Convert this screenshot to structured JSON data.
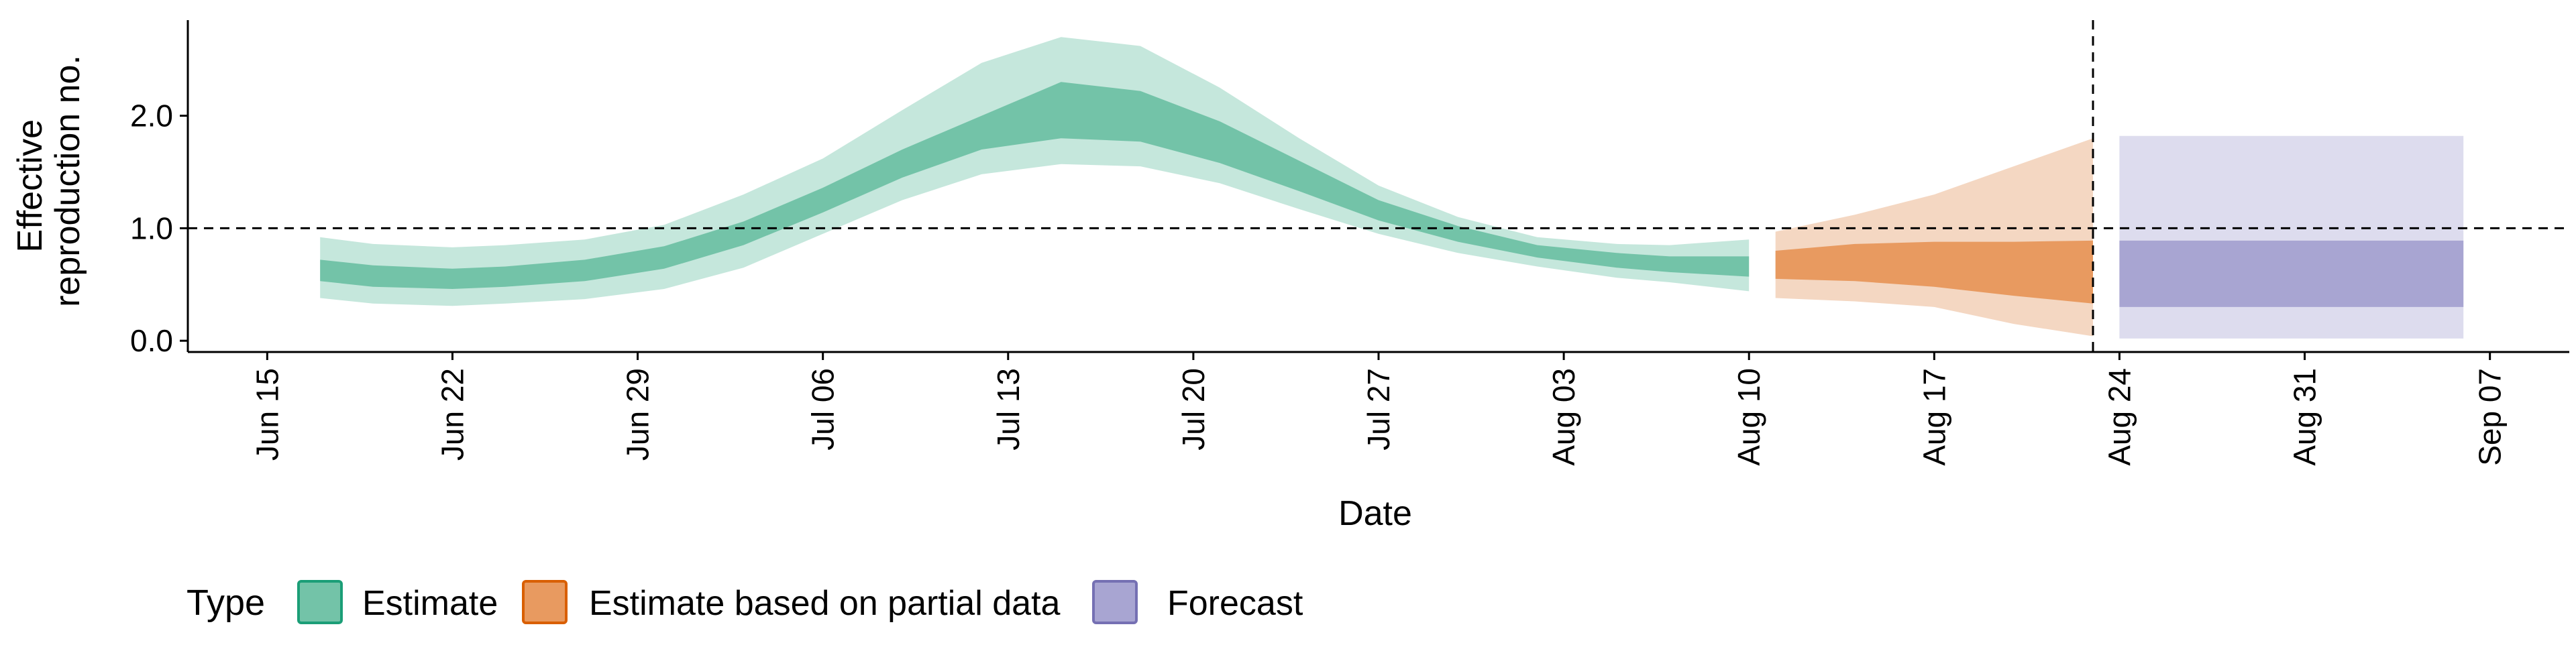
{
  "chart_data": {
    "type": "area",
    "xlabel": "Date",
    "ylabel": [
      "Effective",
      "reproduction no."
    ],
    "yticks": [
      "0.0",
      "1.0",
      "2.0"
    ],
    "ylim": [
      -0.1,
      2.85
    ],
    "xlim": [
      "2020-06-12",
      "2020-09-10"
    ],
    "xticks": [
      {
        "date": "2020-06-15",
        "label": "Jun 15"
      },
      {
        "date": "2020-06-22",
        "label": "Jun 22"
      },
      {
        "date": "2020-06-29",
        "label": "Jun 29"
      },
      {
        "date": "2020-07-06",
        "label": "Jul 06"
      },
      {
        "date": "2020-07-13",
        "label": "Jul 13"
      },
      {
        "date": "2020-07-20",
        "label": "Jul 20"
      },
      {
        "date": "2020-07-27",
        "label": "Jul 27"
      },
      {
        "date": "2020-08-03",
        "label": "Aug 03"
      },
      {
        "date": "2020-08-10",
        "label": "Aug 10"
      },
      {
        "date": "2020-08-17",
        "label": "Aug 17"
      },
      {
        "date": "2020-08-24",
        "label": "Aug 24"
      },
      {
        "date": "2020-08-31",
        "label": "Aug 31"
      },
      {
        "date": "2020-09-07",
        "label": "Sep 07"
      }
    ],
    "reference_line_y": 1.0,
    "vertical_line_date": "2020-08-23",
    "grid": false,
    "legend": {
      "title": "Type",
      "position": "bottom-left",
      "entries": [
        {
          "label": "Estimate",
          "fill": "#73c3a8",
          "border": "#1b9e77"
        },
        {
          "label": "Estimate based on partial data",
          "fill": "#e89a60",
          "border": "#d95f02"
        },
        {
          "label": "Forecast",
          "fill": "#a8a5d2",
          "border": "#7570b3"
        }
      ]
    },
    "series": [
      {
        "name": "Estimate",
        "color_inner": "#73c3a8",
        "color_outer": "#c5e7dc",
        "points": [
          {
            "x": "2020-06-17",
            "lo90": 0.38,
            "lo50": 0.53,
            "hi50": 0.72,
            "hi90": 0.92
          },
          {
            "x": "2020-06-19",
            "lo90": 0.33,
            "lo50": 0.48,
            "hi50": 0.67,
            "hi90": 0.86
          },
          {
            "x": "2020-06-22",
            "lo90": 0.31,
            "lo50": 0.46,
            "hi50": 0.64,
            "hi90": 0.83
          },
          {
            "x": "2020-06-24",
            "lo90": 0.33,
            "lo50": 0.48,
            "hi50": 0.66,
            "hi90": 0.85
          },
          {
            "x": "2020-06-27",
            "lo90": 0.37,
            "lo50": 0.53,
            "hi50": 0.72,
            "hi90": 0.9
          },
          {
            "x": "2020-06-30",
            "lo90": 0.46,
            "lo50": 0.64,
            "hi50": 0.84,
            "hi90": 1.03
          },
          {
            "x": "2020-07-03",
            "lo90": 0.65,
            "lo50": 0.85,
            "hi50": 1.06,
            "hi90": 1.3
          },
          {
            "x": "2020-07-06",
            "lo90": 0.95,
            "lo50": 1.14,
            "hi50": 1.36,
            "hi90": 1.62
          },
          {
            "x": "2020-07-09",
            "lo90": 1.25,
            "lo50": 1.45,
            "hi50": 1.7,
            "hi90": 2.05
          },
          {
            "x": "2020-07-12",
            "lo90": 1.48,
            "lo50": 1.7,
            "hi50": 2.0,
            "hi90": 2.47
          },
          {
            "x": "2020-07-15",
            "lo90": 1.57,
            "lo50": 1.8,
            "hi50": 2.3,
            "hi90": 2.7
          },
          {
            "x": "2020-07-18",
            "lo90": 1.55,
            "lo50": 1.77,
            "hi50": 2.22,
            "hi90": 2.62
          },
          {
            "x": "2020-07-21",
            "lo90": 1.4,
            "lo50": 1.58,
            "hi50": 1.95,
            "hi90": 2.25
          },
          {
            "x": "2020-07-24",
            "lo90": 1.17,
            "lo50": 1.33,
            "hi50": 1.6,
            "hi90": 1.8
          },
          {
            "x": "2020-07-27",
            "lo90": 0.95,
            "lo50": 1.07,
            "hi50": 1.25,
            "hi90": 1.38
          },
          {
            "x": "2020-07-30",
            "lo90": 0.78,
            "lo50": 0.88,
            "hi50": 1.02,
            "hi90": 1.1
          },
          {
            "x": "2020-08-02",
            "lo90": 0.66,
            "lo50": 0.74,
            "hi50": 0.85,
            "hi90": 0.92
          },
          {
            "x": "2020-08-05",
            "lo90": 0.56,
            "lo50": 0.65,
            "hi50": 0.78,
            "hi90": 0.86
          },
          {
            "x": "2020-08-07",
            "lo90": 0.52,
            "lo50": 0.61,
            "hi50": 0.75,
            "hi90": 0.85
          },
          {
            "x": "2020-08-10",
            "lo90": 0.44,
            "lo50": 0.57,
            "hi50": 0.75,
            "hi90": 0.9
          }
        ]
      },
      {
        "name": "Estimate based on partial data",
        "color_inner": "#e89a60",
        "color_outer": "#f4d7c2",
        "points": [
          {
            "x": "2020-08-11",
            "lo90": 0.38,
            "lo50": 0.55,
            "hi50": 0.8,
            "hi90": 0.97
          },
          {
            "x": "2020-08-14",
            "lo90": 0.35,
            "lo50": 0.53,
            "hi50": 0.86,
            "hi90": 1.12
          },
          {
            "x": "2020-08-17",
            "lo90": 0.3,
            "lo50": 0.48,
            "hi50": 0.88,
            "hi90": 1.3
          },
          {
            "x": "2020-08-20",
            "lo90": 0.15,
            "lo50": 0.4,
            "hi50": 0.88,
            "hi90": 1.55
          },
          {
            "x": "2020-08-23",
            "lo90": 0.04,
            "lo50": 0.33,
            "hi50": 0.89,
            "hi90": 1.8
          }
        ]
      },
      {
        "name": "Forecast",
        "color_inner": "#a8a5d2",
        "color_outer": "#dddcee",
        "points": [
          {
            "x": "2020-08-24",
            "lo90": 0.02,
            "lo50": 0.3,
            "hi50": 0.89,
            "hi90": 1.82
          },
          {
            "x": "2020-09-06",
            "lo90": 0.02,
            "lo50": 0.3,
            "hi50": 0.89,
            "hi90": 1.82
          }
        ]
      }
    ]
  }
}
